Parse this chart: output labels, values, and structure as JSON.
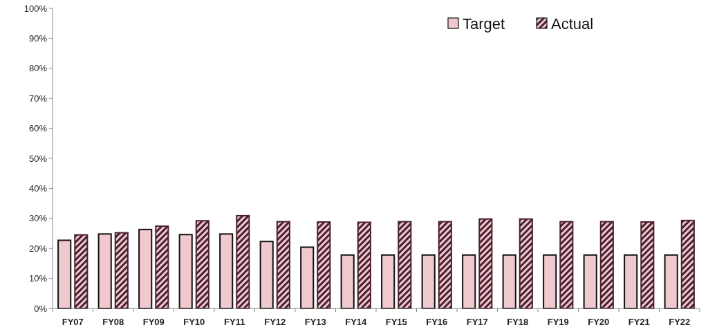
{
  "chart_data": {
    "type": "bar",
    "categories": [
      "FY07",
      "FY08",
      "FY09",
      "FY10",
      "FY11",
      "FY12",
      "FY13",
      "FY14",
      "FY15",
      "FY16",
      "FY17",
      "FY18",
      "FY19",
      "FY20",
      "FY21",
      "FY22"
    ],
    "series": [
      {
        "name": "Target",
        "color": "#efc9cd",
        "values": [
          22.7,
          24.8,
          26.3,
          24.6,
          24.8,
          22.3,
          20.4,
          17.8,
          17.8,
          17.8,
          17.8,
          17.8,
          17.8,
          17.8,
          17.8,
          17.8
        ]
      },
      {
        "name": "Actual",
        "color": "#4a2030",
        "values": [
          24.5,
          25.2,
          27.4,
          29.2,
          30.9,
          28.9,
          28.8,
          28.7,
          28.9,
          28.9,
          29.8,
          29.8,
          28.9,
          28.9,
          28.8,
          29.3
        ]
      }
    ],
    "ylim": [
      0,
      100
    ],
    "yticks": [
      {
        "value": 0,
        "label": "0%"
      },
      {
        "value": 10,
        "label": "10%"
      },
      {
        "value": 20,
        "label": "20%"
      },
      {
        "value": 30,
        "label": "30%"
      },
      {
        "value": 40,
        "label": "40%"
      },
      {
        "value": 50,
        "label": "50%"
      },
      {
        "value": 60,
        "label": "60%"
      },
      {
        "value": 70,
        "label": "70%"
      },
      {
        "value": 80,
        "label": "80%"
      },
      {
        "value": 90,
        "label": "90%"
      },
      {
        "value": 100,
        "label": "100%"
      }
    ],
    "legend": "top right"
  }
}
